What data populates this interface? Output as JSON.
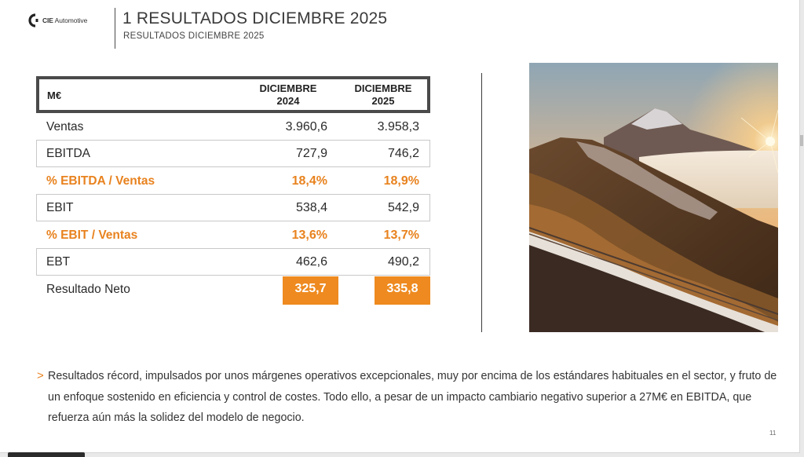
{
  "header": {
    "logo_text_bold": "CIE",
    "logo_text_light": "Automotive",
    "title": "1 RESULTADOS DICIEMBRE 2025",
    "subtitle": "RESULTADOS DICIEMBRE 2025"
  },
  "table": {
    "headers": {
      "unit": "M€",
      "col1_line1": "DICIEMBRE",
      "col1_line2": "2024",
      "col2_line1": "DICIEMBRE",
      "col2_line2": "2025"
    },
    "rows": [
      {
        "label": "Ventas",
        "v1": "3.960,6",
        "v2": "3.958,3"
      },
      {
        "label": "EBITDA",
        "v1": "727,9",
        "v2": "746,2"
      },
      {
        "label": "% EBITDA / Ventas",
        "v1": "18,4%",
        "v2": "18,9%"
      },
      {
        "label": "EBIT",
        "v1": "538,4",
        "v2": "542,9"
      },
      {
        "label": "% EBIT / Ventas",
        "v1": "13,6%",
        "v2": "13,7%"
      },
      {
        "label": "EBT",
        "v1": "462,6",
        "v2": "490,2"
      },
      {
        "label": "Resultado Neto",
        "v1": "325,7",
        "v2": "335,8"
      }
    ]
  },
  "bullet": {
    "marker": ">",
    "text": "Resultados récord, impulsados por unos márgenes operativos excepcionales, muy por encima de los estándares habituales en el sector, y fruto de un enfoque sostenido en eficiencia y control de costes. Todo ello, a pesar de un impacto cambiario negativo superior a 27M€ en EBITDA, que refuerza aún más la solidez del modelo de negocio."
  },
  "page_number": "11",
  "colors": {
    "accent": "#ee8a1f",
    "text": "#2a2a2a",
    "border": "#4a4a4a"
  }
}
